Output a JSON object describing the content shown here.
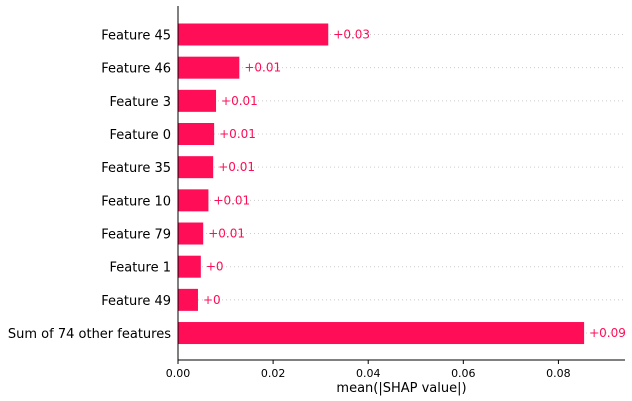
{
  "chart_data": {
    "type": "bar",
    "orientation": "horizontal",
    "categories": [
      "Feature 45",
      "Feature 46",
      "Feature 3",
      "Feature 0",
      "Feature 35",
      "Feature 10",
      "Feature 79",
      "Feature 1",
      "Feature 49",
      "Sum of 74 other features"
    ],
    "values": [
      0.0316,
      0.0129,
      0.008,
      0.0076,
      0.0074,
      0.0064,
      0.0053,
      0.0048,
      0.0042,
      0.0854
    ],
    "value_labels": [
      "+0.03",
      "+0.01",
      "+0.01",
      "+0.01",
      "+0.01",
      "+0.01",
      "+0.01",
      "+0",
      "+0",
      "+0.09"
    ],
    "xlabel": "mean(|SHAP value|)",
    "xlim": [
      0,
      0.094
    ],
    "xticks": [
      0,
      0.02,
      0.04,
      0.06,
      0.08
    ],
    "xtick_labels": [
      "0.00",
      "0.02",
      "0.04",
      "0.06",
      "0.08"
    ],
    "grid": "horizontal dotted",
    "colors": {
      "bar": "#ff0d57",
      "value_label": "#ff0d57",
      "grid": "#cccccc",
      "axis": "#000000"
    }
  }
}
